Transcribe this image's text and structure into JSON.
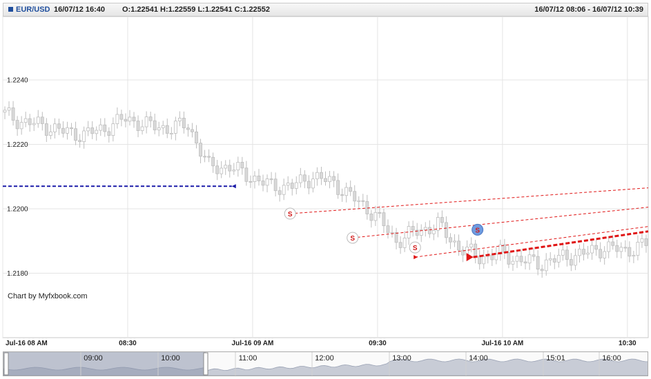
{
  "header": {
    "symbol": "EUR/USD",
    "datetime": "16/07/12 16:40",
    "ohlc": "O:1.22541 H:1.22559 L:1.22541 C:1.22552",
    "range": "16/07/12 08:06 - 16/07/12 10:39"
  },
  "watermark": "Chart by Myfxbook.com",
  "colors": {
    "candle_up": "#ffffff",
    "candle_outline": "#bdbdbd",
    "blue_line": "#1a1aa8",
    "red_line": "#e01414",
    "signal_text": "#d11a1a",
    "signal_highlight": "#6f9be0",
    "navigator_fill": "#8a93ab"
  },
  "chart_data": {
    "type": "candlestick",
    "title": "EUR/USD",
    "x_ticks": [
      "Jul-16 08 AM",
      "08:30",
      "Jul-16 09 AM",
      "09:30",
      "Jul-16 10 AM",
      "10:30"
    ],
    "y_ticks": [
      "1.2240",
      "1.2220",
      "1.2200",
      "1.2180"
    ],
    "ylim": [
      1.216,
      1.2265
    ],
    "xlim_minutes": [
      0,
      155
    ],
    "grid": true,
    "series": [
      {
        "type": "ohlc_close",
        "x_minutes": [
          0,
          5,
          10,
          15,
          20,
          25,
          30,
          35,
          40,
          45,
          50,
          55,
          60,
          65,
          70,
          75,
          80,
          85,
          90,
          95,
          100,
          105,
          110,
          115,
          120,
          125,
          130,
          135,
          140,
          145,
          150,
          155
        ],
        "values": [
          1.223,
          1.2227,
          1.2226,
          1.2224,
          1.2223,
          1.2225,
          1.2228,
          1.2226,
          1.2225,
          1.2226,
          1.2213,
          1.2213,
          1.221,
          1.2207,
          1.2207,
          1.221,
          1.2208,
          1.2203,
          1.2198,
          1.219,
          1.2193,
          1.2195,
          1.2188,
          1.2185,
          1.2186,
          1.2184,
          1.2183,
          1.2185,
          1.2186,
          1.2188,
          1.2187,
          1.2189
        ]
      }
    ],
    "blue_line": {
      "y": 1.2207,
      "x_minutes": [
        0,
        55
      ]
    },
    "trend_lines": [
      {
        "from": {
          "x_minutes": 69,
          "y": 1.21985
        },
        "to": {
          "x_minutes": 155,
          "y": 1.22065
        }
      },
      {
        "from": {
          "x_minutes": 84,
          "y": 1.2191
        },
        "to": {
          "x_minutes": 155,
          "y": 1.22005
        }
      },
      {
        "from": {
          "x_minutes": 99,
          "y": 1.2185
        },
        "to": {
          "x_minutes": 155,
          "y": 1.21945
        }
      }
    ],
    "bold_trend": {
      "from": {
        "x_minutes": 113,
        "y": 1.2185
      },
      "to": {
        "x_minutes": 155,
        "y": 1.2193
      }
    },
    "signals": [
      {
        "label": "S",
        "x_minutes": 69,
        "y": 1.21985,
        "highlight": false
      },
      {
        "label": "S",
        "x_minutes": 84,
        "y": 1.2191,
        "highlight": false
      },
      {
        "label": "S",
        "x_minutes": 99,
        "y": 1.2188,
        "highlight": false
      },
      {
        "label": "S",
        "x_minutes": 114,
        "y": 1.21935,
        "highlight": true
      }
    ]
  },
  "navigator": {
    "labels": [
      "09:00",
      "10:00",
      "11:00",
      "12:00",
      "13:00",
      "14:00",
      "15:01",
      "16:00"
    ]
  }
}
